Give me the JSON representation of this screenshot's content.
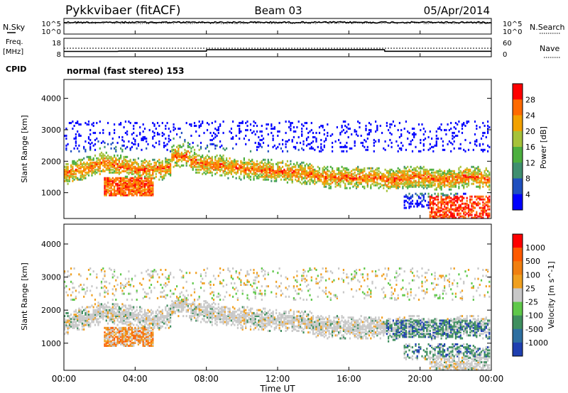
{
  "header": {
    "radar": "Pykkvibaer (fitACF)",
    "beam": "Beam 03",
    "date": "05/Apr/2014"
  },
  "noise_panel": {
    "left_label": "N.Sky",
    "right_label": "N.Search",
    "left_ticks": [
      "10^5",
      "10^0"
    ],
    "right_ticks": [
      "10^5",
      "10^0"
    ]
  },
  "freq_panel": {
    "label_line1": "Freq.",
    "label_line2": "[MHz]",
    "left_ticks": [
      "18",
      "8"
    ],
    "right_label": "Nave",
    "right_ticks": [
      "60",
      "0"
    ],
    "freq_steps": [
      {
        "t": 0,
        "f": 10.5
      },
      {
        "t": 3.0,
        "f": 10.5
      },
      {
        "t": 3.1,
        "f": 10.7
      },
      {
        "t": 8.0,
        "f": 10.7
      },
      {
        "t": 8.02,
        "f": 11.6
      },
      {
        "t": 18.0,
        "f": 11.6
      },
      {
        "t": 18.02,
        "f": 10.6
      },
      {
        "t": 24,
        "f": 10.6
      }
    ]
  },
  "cpid": {
    "label": "CPID",
    "value": "normal (fast stereo) 153"
  },
  "chart_data": [
    {
      "type": "heatmap",
      "title": "Power",
      "ylabel": "Slant Range [km]",
      "xlabel": "Time UT",
      "xlim": [
        "00:00",
        "24:00"
      ],
      "ylim": [
        180,
        4600
      ],
      "yticks": [
        "1000",
        "2000",
        "3000",
        "4000"
      ],
      "colorbar": {
        "label": "Power [dB]",
        "ticks": [
          "4",
          "8",
          "12",
          "16",
          "20",
          "24",
          "28"
        ],
        "colors": [
          "#0000ff",
          "#1f4fbf",
          "#3f8f6f",
          "#4caf3f",
          "#a6c23a",
          "#f2a100",
          "#ff6a00",
          "#ff0000"
        ]
      }
    },
    {
      "type": "heatmap",
      "title": "Velocity",
      "ylabel": "Slant Range [km]",
      "xlabel": "Time UT",
      "xlim": [
        "00:00",
        "24:00"
      ],
      "ylim": [
        180,
        4600
      ],
      "yticks": [
        "1000",
        "2000",
        "3000",
        "4000"
      ],
      "colorbar": {
        "label": "Velocity [m s^-1]",
        "ticks": [
          "1000",
          "500",
          "100",
          "25",
          "-25",
          "-100",
          "-500",
          "-1000"
        ],
        "colors": [
          "#1f3fb0",
          "#2e6fa0",
          "#3f8f5f",
          "#5fc84a",
          "#c8c8c8",
          "#f0a020",
          "#f07f10",
          "#ff5a00",
          "#ff0000"
        ]
      }
    }
  ],
  "xaxis": {
    "ticks": [
      "00:00",
      "04:00",
      "08:00",
      "12:00",
      "16:00",
      "20:00",
      "00:00"
    ],
    "label": "Time UT"
  },
  "colors": {
    "axis": "#000000",
    "grid": "#000000"
  }
}
